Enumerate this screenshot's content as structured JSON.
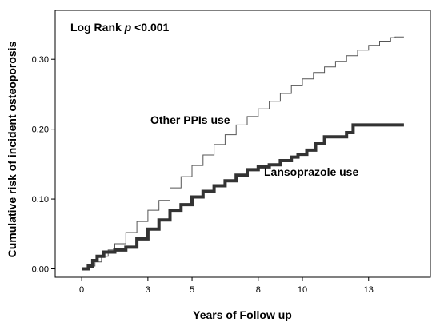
{
  "chart_data": {
    "type": "line",
    "step": true,
    "xlabel": "Years of Follow up",
    "ylabel": "Cumulative risk of incident osteoporosis",
    "xlim": [
      -1.2,
      15.8
    ],
    "ylim": [
      -0.012,
      0.37
    ],
    "x_ticks": [
      0,
      3,
      5,
      8,
      10,
      13
    ],
    "x_tick_labels": [
      "0",
      "3",
      "5",
      "8",
      "10",
      "13"
    ],
    "y_ticks": [
      0.0,
      0.1,
      0.2,
      0.3
    ],
    "y_tick_labels": [
      "0.00",
      "0.10",
      "0.20",
      "0.30"
    ],
    "grid": false,
    "legend": "none",
    "annotations": {
      "log_rank_prefix": "Log Rank ",
      "log_rank_p": "p",
      "log_rank_suffix": " <0.001"
    },
    "series": [
      {
        "name": "Other PPIs use",
        "color": "#555555",
        "x": [
          0,
          0.3,
          0.6,
          0.9,
          1.2,
          1.5,
          2.0,
          2.5,
          3.0,
          3.5,
          4.0,
          4.5,
          5.0,
          5.5,
          6.0,
          6.5,
          7.0,
          7.5,
          8.0,
          8.5,
          9.0,
          9.5,
          10.0,
          10.5,
          11.0,
          11.5,
          12.0,
          12.5,
          13.0,
          13.5,
          14.0,
          14.2,
          14.6
        ],
        "y": [
          0.0,
          0.004,
          0.01,
          0.018,
          0.027,
          0.036,
          0.052,
          0.068,
          0.084,
          0.098,
          0.116,
          0.132,
          0.148,
          0.163,
          0.178,
          0.192,
          0.206,
          0.218,
          0.229,
          0.24,
          0.251,
          0.262,
          0.272,
          0.281,
          0.289,
          0.297,
          0.305,
          0.313,
          0.32,
          0.326,
          0.331,
          0.332,
          0.332
        ]
      },
      {
        "name": "Lansoprazole use",
        "color": "#333333",
        "x": [
          0,
          0.3,
          0.5,
          0.7,
          1.0,
          1.5,
          2.0,
          2.5,
          3.0,
          3.5,
          4.0,
          4.5,
          5.0,
          5.5,
          6.0,
          6.5,
          7.0,
          7.5,
          8.0,
          8.5,
          9.0,
          9.5,
          9.8,
          10.2,
          10.6,
          11.0,
          11.5,
          12.0,
          12.3,
          12.8,
          13.5,
          14.6
        ],
        "y": [
          0.0,
          0.004,
          0.012,
          0.018,
          0.024,
          0.027,
          0.031,
          0.043,
          0.057,
          0.07,
          0.084,
          0.092,
          0.103,
          0.111,
          0.119,
          0.126,
          0.134,
          0.142,
          0.146,
          0.149,
          0.155,
          0.16,
          0.164,
          0.17,
          0.179,
          0.189,
          0.189,
          0.195,
          0.206,
          0.206,
          0.206,
          0.206
        ]
      }
    ]
  }
}
